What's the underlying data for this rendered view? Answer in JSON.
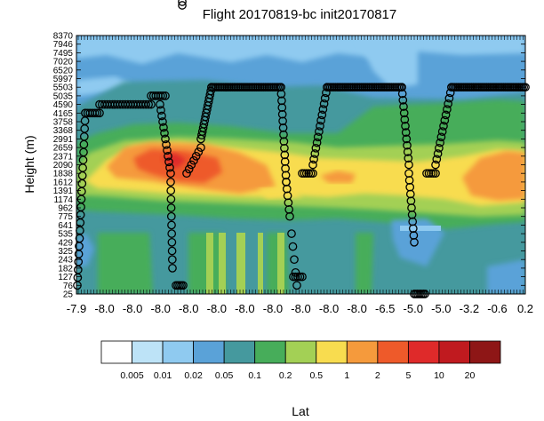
{
  "chart_data": {
    "type": "heatmap",
    "title": "Flight 20170819-bc  init20170817",
    "xlabel": "Lat",
    "ylabel": "Height (m)",
    "y_tick_labels": [
      "25",
      "76",
      "127",
      "182",
      "243",
      "325",
      "429",
      "535",
      "641",
      "775",
      "962",
      "1174",
      "1391",
      "1612",
      "1838",
      "2090",
      "2371",
      "2659",
      "2991",
      "3368",
      "3758",
      "4165",
      "4590",
      "5035",
      "5503",
      "5997",
      "6520",
      "7020",
      "7495",
      "7946",
      "8370"
    ],
    "x_tick_labels": [
      "-7.9",
      "-8.0",
      "-8.0",
      "-8.0",
      "-8.0",
      "-8.0",
      "-8.0",
      "-8.0",
      "-8.0",
      "-8.0",
      "-8.0",
      "-6.5",
      "-5.0",
      "-5.0",
      "-3.2",
      "-0.6",
      "0.2"
    ],
    "colorbar": {
      "labels": [
        "0.005",
        "0.01",
        "0.02",
        "0.05",
        "0.1",
        "0.2",
        "0.5",
        "1",
        "2",
        "5",
        "10",
        "20"
      ],
      "colors": [
        "#ffffff",
        "#bde3f7",
        "#8fcaf0",
        "#5aa2d8",
        "#45999e",
        "#47ad5a",
        "#a3d055",
        "#f8dc4f",
        "#f59a3c",
        "#ee5a2a",
        "#df2a2a",
        "#c01a1f",
        "#8e1616"
      ]
    }
  }
}
